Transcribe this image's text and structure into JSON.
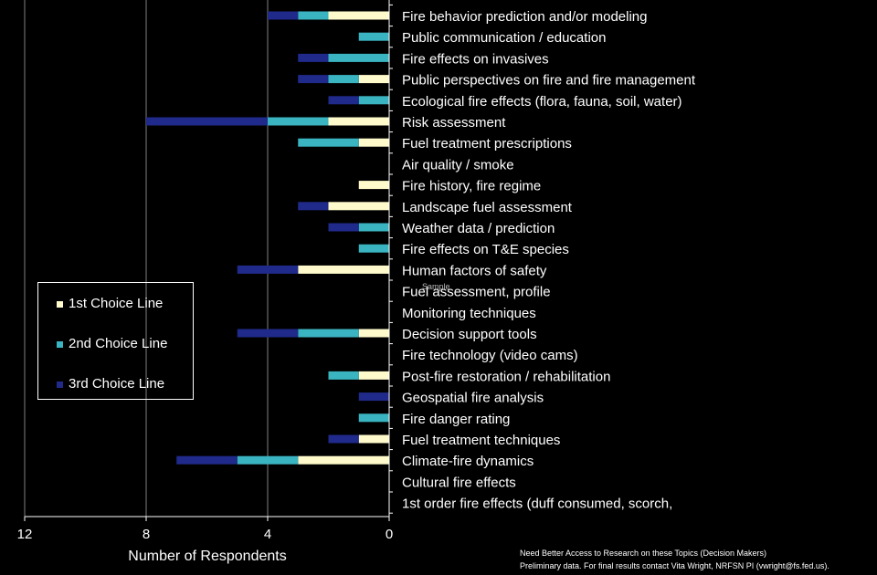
{
  "colors": {
    "first": "#fefacb",
    "second": "#3bb4c1",
    "third": "#202a8a",
    "grid": "#7f7f7f",
    "background": "#000000",
    "text": "#ffffff"
  },
  "chart_data": {
    "type": "bar",
    "orientation": "horizontal-stacked",
    "x_axis_reversed": true,
    "xlabel": "Number of Respondents",
    "xlim": [
      0,
      12
    ],
    "xticks": [
      12,
      8,
      4,
      0
    ],
    "grid": true,
    "legend_position": "left",
    "categories": [
      "Fire behavior prediction and/or modeling",
      "Public communication / education",
      "Fire effects on invasives",
      "Public perspectives on fire and fire management",
      "Ecological fire effects (flora, fauna, soil, water)",
      "Risk assessment",
      "Fuel treatment prescriptions",
      "Air quality / smoke",
      "Fire history, fire regime",
      "Landscape fuel assessment",
      "Weather data / prediction",
      "Fire effects on T&E species",
      "Human factors of safety",
      "Fuel assessment, profile",
      "Monitoring techniques",
      "Decision support tools",
      "Fire technology (video cams)",
      "Post-fire restoration / rehabilitation",
      "Geospatial fire analysis",
      "Fire danger rating",
      "Fuel treatment techniques",
      "Climate-fire dynamics",
      "Cultural fire effects",
      "1st order fire effects (duff consumed, scorch,"
    ],
    "series": [
      {
        "name": "1st Choice Line",
        "values": [
          2,
          0,
          0,
          1,
          0,
          2,
          1,
          0,
          1,
          2,
          0,
          0,
          3,
          0,
          0,
          1,
          0,
          1,
          0,
          0,
          1,
          3,
          0,
          0
        ]
      },
      {
        "name": "2nd Choice Line",
        "values": [
          1,
          1,
          2,
          1,
          1,
          2,
          2,
          0,
          0,
          0,
          1,
          1,
          0,
          0,
          0,
          2,
          0,
          1,
          0,
          1,
          0,
          2,
          0,
          0
        ]
      },
      {
        "name": "3rd Choice Line",
        "values": [
          1,
          0,
          1,
          1,
          1,
          4,
          0,
          0,
          0,
          1,
          1,
          0,
          2,
          0,
          0,
          2,
          0,
          0,
          1,
          0,
          1,
          2,
          0,
          0
        ]
      }
    ]
  },
  "legend": {
    "items": [
      "1st Choice Line",
      "2nd Choice Line",
      "3rd Choice Line"
    ]
  },
  "watermark": "Sample",
  "footnotes": {
    "line1": "Need Better Access to Research on these Topics (Decision Makers)",
    "line2": "Preliminary data. For final results contact Vita Wright, NRFSN PI (vwright@fs.fed.us)."
  }
}
